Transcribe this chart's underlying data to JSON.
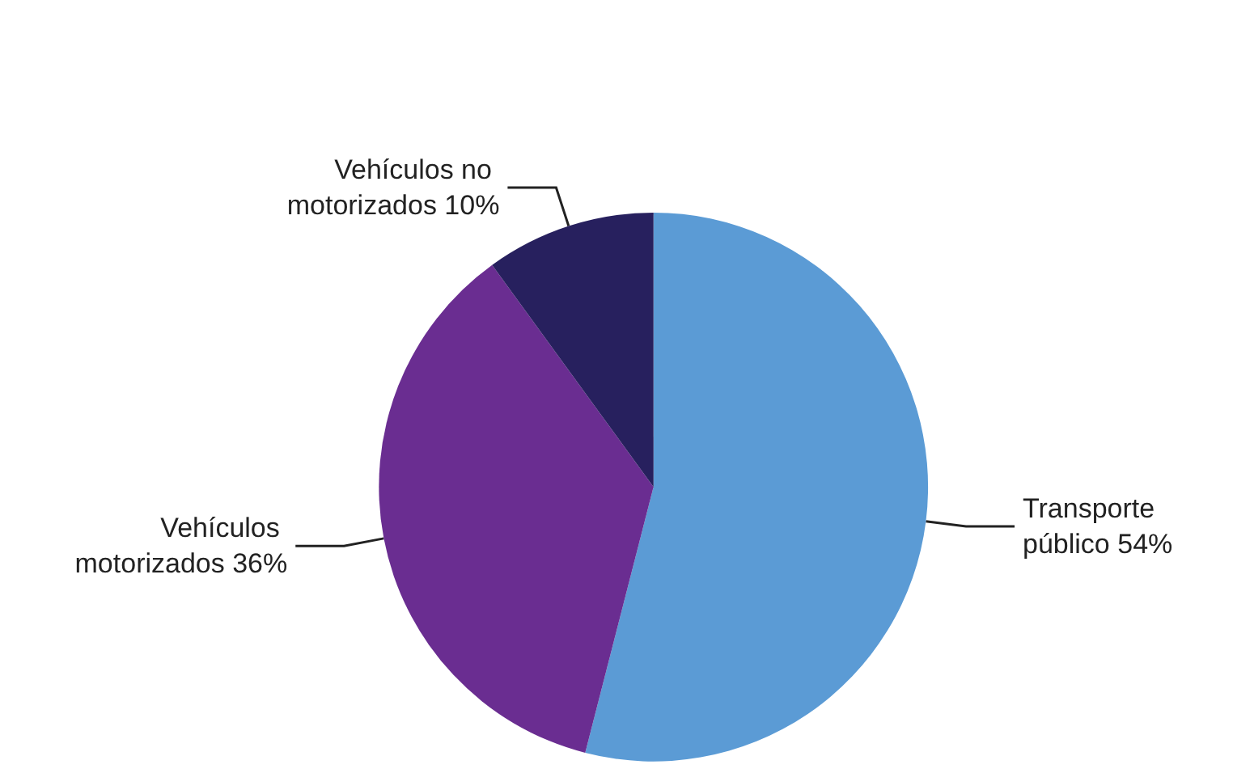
{
  "chart_data": {
    "type": "pie",
    "categories": [
      "Transporte público",
      "Vehículos motorizados",
      "Vehículos no motorizados"
    ],
    "values": [
      54,
      36,
      10
    ],
    "colors": [
      "#5b9bd5",
      "#6a2d91",
      "#27205e"
    ],
    "legend": false,
    "value_labels": [
      "54%",
      "36%",
      "10%"
    ]
  }
}
